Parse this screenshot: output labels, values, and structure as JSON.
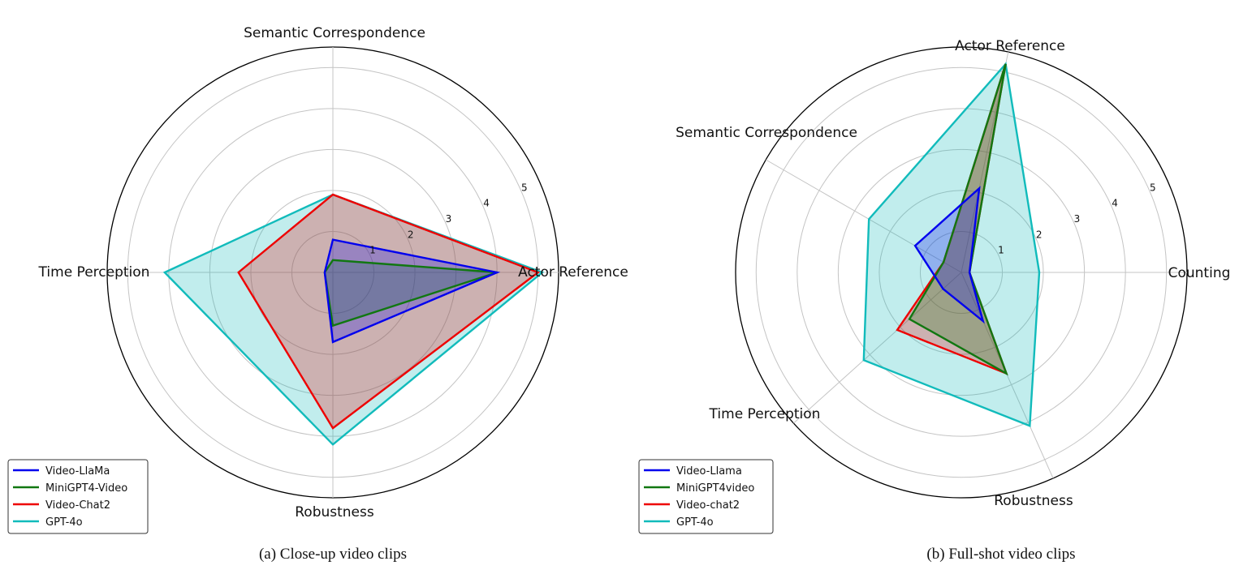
{
  "chart_data": [
    {
      "type": "radar",
      "caption": "(a) Close-up video clips",
      "axes": [
        "Actor Reference",
        "Semantic Correspondence",
        "Time Perception",
        "Robustness"
      ],
      "rmax": 5.5,
      "rticks": [
        1,
        2,
        3,
        4,
        5
      ],
      "grid": true,
      "legend_position": "bottom-left",
      "series": [
        {
          "name": "Video-LlaMa",
          "color": "#0000ee",
          "values": [
            4.0,
            0.8,
            0.2,
            1.7
          ]
        },
        {
          "name": "MiniGPT4-Video",
          "color": "#117711",
          "values": [
            4.0,
            0.3,
            0.2,
            1.3
          ]
        },
        {
          "name": "Video-Chat2",
          "color": "#ee0000",
          "values": [
            5.0,
            1.9,
            2.3,
            3.8
          ]
        },
        {
          "name": "GPT-4o",
          "color": "#11bbbb",
          "values": [
            5.1,
            1.9,
            4.1,
            4.2
          ]
        }
      ]
    },
    {
      "type": "radar",
      "caption": "(b) Full-shot video clips",
      "axes": [
        "Counting",
        "Actor Reference",
        "Semantic Correspondence",
        "Time Perception",
        "Robustness"
      ],
      "rmax": 5.5,
      "rticks": [
        1,
        2,
        3,
        4,
        5
      ],
      "grid": true,
      "legend_position": "bottom-left",
      "series": [
        {
          "name": "Video-Llama",
          "color": "#0000ee",
          "values": [
            0.2,
            2.1,
            1.3,
            0.6,
            1.3
          ]
        },
        {
          "name": "MiniGPT4video",
          "color": "#117711",
          "values": [
            0.2,
            5.2,
            0.5,
            1.7,
            2.7
          ]
        },
        {
          "name": "Video-chat2",
          "color": "#ee0000",
          "values": [
            0.2,
            5.2,
            0.5,
            2.1,
            2.7
          ]
        },
        {
          "name": "GPT-4o",
          "color": "#11bbbb",
          "values": [
            1.9,
            5.2,
            2.6,
            3.2,
            4.1
          ]
        }
      ]
    }
  ]
}
